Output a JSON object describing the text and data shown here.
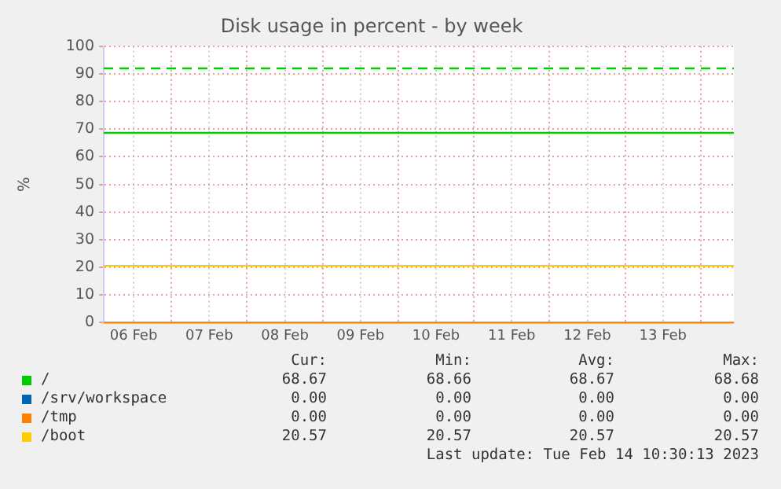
{
  "chart_data": {
    "type": "line",
    "title": "Disk usage in percent - by week",
    "ylabel": "%",
    "x": [
      "2023-02-06T02:30",
      "2023-02-14T10:30"
    ],
    "series": [
      {
        "name": "/",
        "color": "#00cc00",
        "values": [
          68.67,
          68.67
        ]
      },
      {
        "name": "/srv/workspace",
        "color": "#0066b3",
        "values": [
          null,
          null
        ]
      },
      {
        "name": "/tmp",
        "color": "#ff8000",
        "values": [
          0,
          0
        ]
      },
      {
        "name": "/boot",
        "color": "#ffcc00",
        "values": [
          20.57,
          20.57
        ]
      }
    ],
    "xlim": [
      "2023-02-06T02:30",
      "2023-02-14T10:30"
    ],
    "xticks": [
      {
        "value": "2023-02-06T12:00",
        "label": "06 Feb"
      },
      {
        "value": "2023-02-07T00:00",
        "label": null
      },
      {
        "value": "2023-02-07T12:00",
        "label": "07 Feb"
      },
      {
        "value": "2023-02-08T00:00",
        "label": null
      },
      {
        "value": "2023-02-08T12:00",
        "label": "08 Feb"
      },
      {
        "value": "2023-02-09T00:00",
        "label": null
      },
      {
        "value": "2023-02-09T12:00",
        "label": "09 Feb"
      },
      {
        "value": "2023-02-10T00:00",
        "label": null
      },
      {
        "value": "2023-02-10T12:00",
        "label": "10 Feb"
      },
      {
        "value": "2023-02-11T00:00",
        "label": null
      },
      {
        "value": "2023-02-11T12:00",
        "label": "11 Feb"
      },
      {
        "value": "2023-02-12T00:00",
        "label": null
      },
      {
        "value": "2023-02-12T12:00",
        "label": "12 Feb"
      },
      {
        "value": "2023-02-13T00:00",
        "label": null
      },
      {
        "value": "2023-02-13T12:00",
        "label": "13 Feb"
      },
      {
        "value": "2023-02-14T00:00",
        "label": null
      }
    ],
    "ylim": [
      0,
      100
    ],
    "yticks": [
      0,
      10,
      20,
      30,
      40,
      50,
      60,
      70,
      80,
      90,
      100
    ],
    "ref_lines": [
      {
        "axis": "y",
        "value": 92,
        "color": "#00cc00",
        "line_style": "dashed"
      }
    ],
    "grid": true,
    "legend": "bottom",
    "marker": "none",
    "line_style": "solid",
    "annotations": [
      "Cur:",
      "Min:",
      "Avg:",
      "Max:",
      "68.67",
      "68.66",
      "68.67",
      "68.68",
      "0.00",
      "0.00",
      "0.00",
      "0.00",
      "0.00",
      "0.00",
      "0.00",
      "0.00",
      "20.57",
      "20.57",
      "20.57",
      "20.57",
      "Last update: Tue Feb 14 10:30:13 2023"
    ]
  }
}
